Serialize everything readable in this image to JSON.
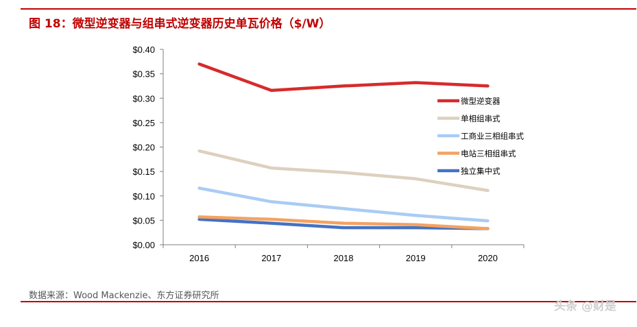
{
  "header": {
    "title": "图 18：微型逆变器与组串式逆变器历史单瓦价格（$/W）"
  },
  "footer": {
    "source": "数据来源：Wood Mackenzie、东方证券研究所",
    "watermark": "头条 @财是"
  },
  "colors": {
    "accent": "#c00000"
  },
  "chart_data": {
    "type": "line",
    "title": "",
    "xlabel": "",
    "ylabel": "",
    "categories": [
      "2016",
      "2017",
      "2018",
      "2019",
      "2020"
    ],
    "ylim": [
      0,
      0.4
    ],
    "yticks": [
      "$0.00",
      "$0.05",
      "$0.10",
      "$0.15",
      "$0.20",
      "$0.25",
      "$0.30",
      "$0.35",
      "$0.40"
    ],
    "grid": false,
    "legend_position": "right",
    "series": [
      {
        "name": "微型逆变器",
        "color": "#d62b2b",
        "values": [
          0.37,
          0.316,
          0.325,
          0.332,
          0.325
        ]
      },
      {
        "name": "单相组串式",
        "color": "#ddd0bf",
        "values": [
          0.192,
          0.157,
          0.148,
          0.135,
          0.111
        ]
      },
      {
        "name": "工商业三相组串式",
        "color": "#a9ccf5",
        "values": [
          0.116,
          0.088,
          0.074,
          0.06,
          0.049
        ]
      },
      {
        "name": "电站三相组串式",
        "color": "#f4a261",
        "values": [
          0.057,
          0.052,
          0.044,
          0.041,
          0.033
        ]
      },
      {
        "name": "独立集中式",
        "color": "#4472c4",
        "values": [
          0.052,
          0.044,
          0.035,
          0.035,
          0.033
        ]
      }
    ]
  }
}
